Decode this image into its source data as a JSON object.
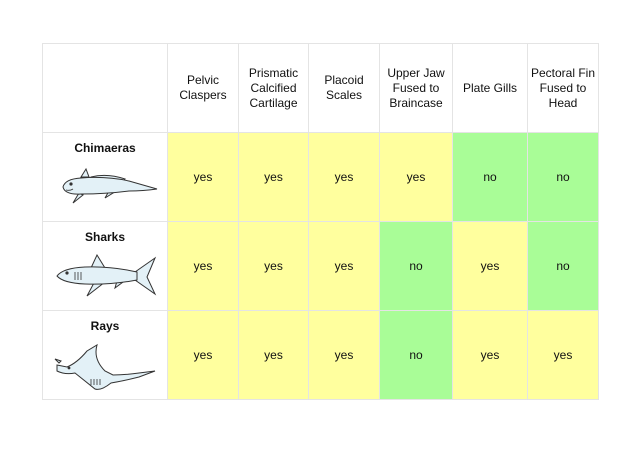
{
  "columns": [
    {
      "id": "pelvic-claspers",
      "label": "Pelvic Claspers"
    },
    {
      "id": "prismatic-calcified-cartilage",
      "label": "Prismatic Calcified Cartilage"
    },
    {
      "id": "placoid-scales",
      "label": "Placoid Scales"
    },
    {
      "id": "upper-jaw-fused",
      "label": "Upper Jaw Fused to Braincase"
    },
    {
      "id": "plate-gills",
      "label": "Plate Gills"
    },
    {
      "id": "pectoral-fin-fused",
      "label": "Pectoral Fin Fused to Head"
    }
  ],
  "rows": [
    {
      "id": "chimaeras",
      "name": "Chimaeras",
      "icon": "chimaera-icon",
      "values": [
        "yes",
        "yes",
        "yes",
        "yes",
        "no",
        "no"
      ]
    },
    {
      "id": "sharks",
      "name": "Sharks",
      "icon": "shark-icon",
      "values": [
        "yes",
        "yes",
        "yes",
        "no",
        "yes",
        "no"
      ]
    },
    {
      "id": "rays",
      "name": "Rays",
      "icon": "ray-icon",
      "values": [
        "yes",
        "yes",
        "yes",
        "no",
        "yes",
        "yes"
      ]
    }
  ],
  "colors": {
    "yes": "#ffff9e",
    "no": "#a9fd97",
    "grid": "#e4e4e4"
  }
}
